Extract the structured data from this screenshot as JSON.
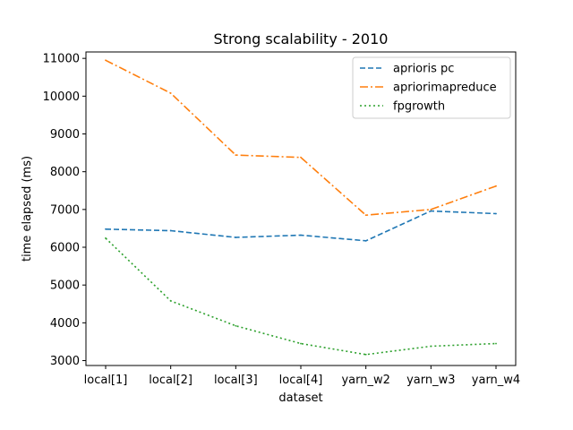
{
  "chart_data": {
    "type": "line",
    "title": "Strong scalability - 2010",
    "xlabel": "dataset",
    "ylabel": "time elapsed (ms)",
    "categories": [
      "local[1]",
      "local[2]",
      "local[3]",
      "local[4]",
      "yarn_w2",
      "yarn_w3",
      "yarn_w4"
    ],
    "ylim": [
      2870,
      11170
    ],
    "yticks": [
      3000,
      4000,
      5000,
      6000,
      7000,
      8000,
      9000,
      10000,
      11000
    ],
    "legend_position": "top-right",
    "grid": false,
    "series": [
      {
        "name": "aprioris pc",
        "color": "#1f77b4",
        "style": "dashed",
        "values": [
          6480,
          6440,
          6260,
          6320,
          6170,
          6960,
          6890
        ]
      },
      {
        "name": "apriorimapreduce",
        "color": "#ff7f0e",
        "style": "dashdot",
        "values": [
          10950,
          10080,
          8440,
          8380,
          6850,
          7000,
          7620
        ]
      },
      {
        "name": "fpgrowth",
        "color": "#2ca02c",
        "style": "dotted",
        "values": [
          6240,
          4580,
          3920,
          3450,
          3160,
          3380,
          3450
        ]
      }
    ]
  }
}
